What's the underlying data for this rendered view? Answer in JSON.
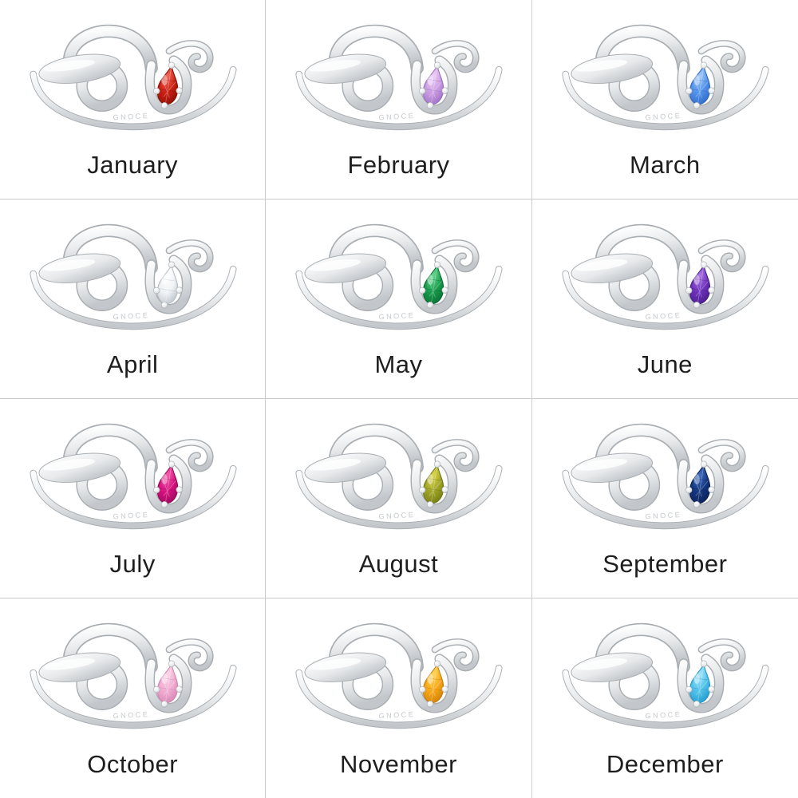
{
  "page": {
    "background": "#ffffff",
    "divider_color": "#cccccc",
    "label_color": "#1e1e1e",
    "grid": {
      "columns": 3,
      "rows": 4
    }
  },
  "ring": {
    "engraving": "GNOCE",
    "metal": {
      "light": "#ffffff",
      "mid": "#e7e9eb",
      "deep": "#c3c7cb",
      "shadow": "#a9aeb3",
      "engraving_color": "#c3c7ca"
    }
  },
  "months": [
    {
      "label": "January",
      "stone_color_name": "red",
      "gem": {
        "light": "#f2695b",
        "main": "#c81e10",
        "dark": "#7e0d06"
      }
    },
    {
      "label": "February",
      "stone_color_name": "light-purple",
      "gem": {
        "light": "#eed2f7",
        "main": "#c99ae0",
        "dark": "#9467bd"
      }
    },
    {
      "label": "March",
      "stone_color_name": "blue",
      "gem": {
        "light": "#a6cdf7",
        "main": "#4f90e8",
        "dark": "#2b62c2"
      }
    },
    {
      "label": "April",
      "stone_color_name": "clear-white",
      "gem": {
        "light": "#ffffff",
        "main": "#eef1f4",
        "dark": "#b2bac2"
      }
    },
    {
      "label": "May",
      "stone_color_name": "green",
      "gem": {
        "light": "#66da90",
        "main": "#17994a",
        "dark": "#07662e"
      }
    },
    {
      "label": "June",
      "stone_color_name": "purple",
      "gem": {
        "light": "#b078e6",
        "main": "#6c2fb9",
        "dark": "#421b80"
      }
    },
    {
      "label": "July",
      "stone_color_name": "magenta-pink",
      "gem": {
        "light": "#f35fae",
        "main": "#d5107e",
        "dark": "#8e0a55"
      }
    },
    {
      "label": "August",
      "stone_color_name": "olive-green",
      "gem": {
        "light": "#ded84e",
        "main": "#9ea224",
        "dark": "#687413"
      }
    },
    {
      "label": "September",
      "stone_color_name": "dark-navy-blue",
      "gem": {
        "light": "#3f6fc4",
        "main": "#14357d",
        "dark": "#091d4e"
      }
    },
    {
      "label": "October",
      "stone_color_name": "light-pink",
      "gem": {
        "light": "#fbd9ea",
        "main": "#f0a9cf",
        "dark": "#cf7fae"
      }
    },
    {
      "label": "November",
      "stone_color_name": "golden-orange",
      "gem": {
        "light": "#ffd95e",
        "main": "#f6a515",
        "dark": "#c57807"
      }
    },
    {
      "label": "December",
      "stone_color_name": "sky-blue",
      "gem": {
        "light": "#a8e6f9",
        "main": "#4cc0e9",
        "dark": "#1d92c4"
      }
    }
  ]
}
